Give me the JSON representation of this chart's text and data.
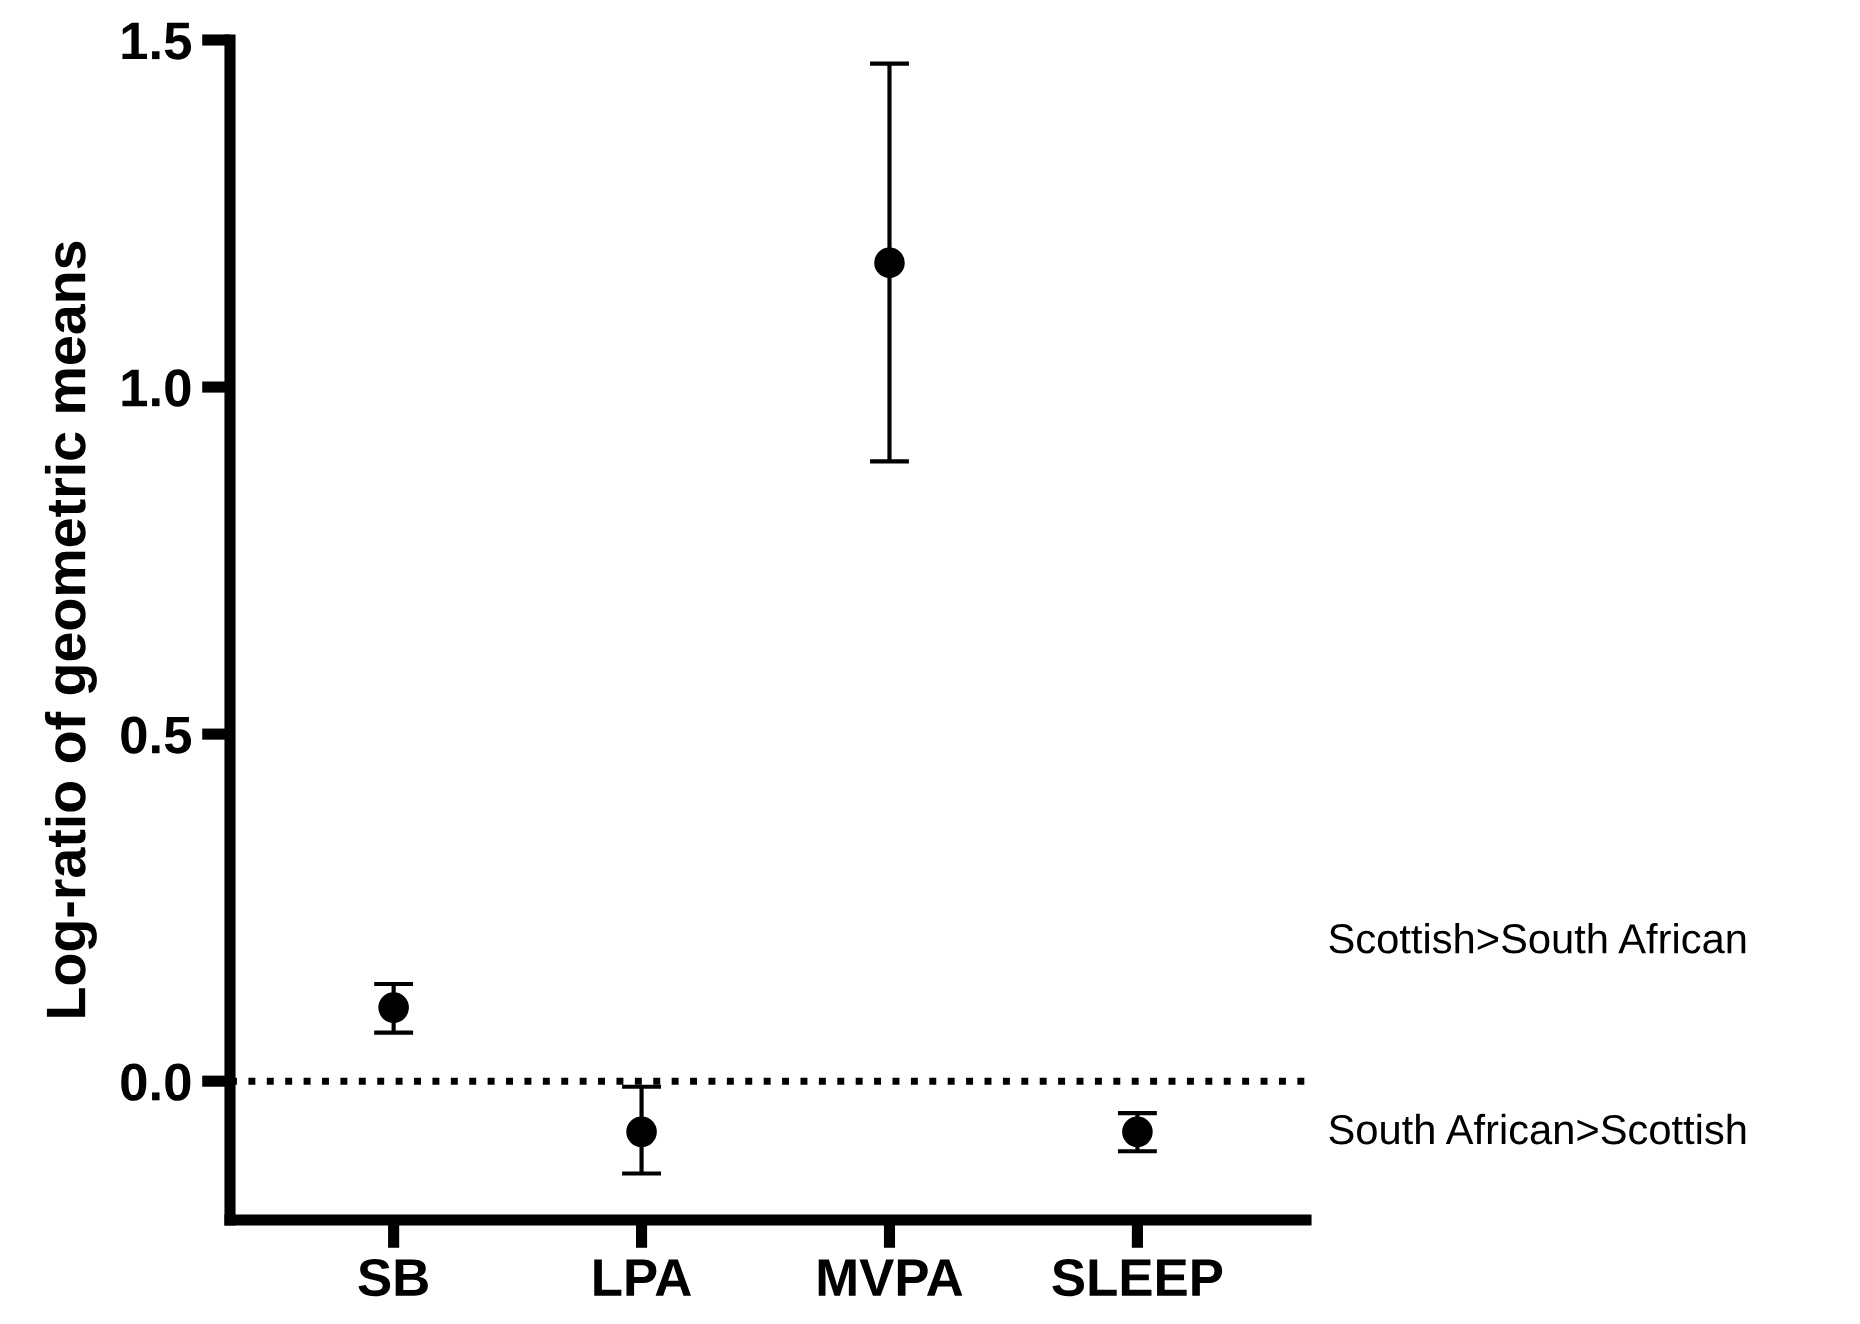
{
  "chart_data": {
    "type": "scatter",
    "ylabel": "Log-ratio of geometric means",
    "categories": [
      "SB",
      "LPA",
      "MVPA",
      "SLEEP"
    ],
    "values": [
      0.106,
      -0.073,
      1.179,
      -0.073
    ],
    "errors": [
      [
        0.07,
        0.14
      ],
      [
        -0.133,
        -0.008
      ],
      [
        0.893,
        1.466
      ],
      [
        -0.101,
        -0.046
      ]
    ],
    "color": "#000000",
    "marker": "circle",
    "ylim": [
      -0.2,
      1.5
    ],
    "yticks": [
      {
        "value": 0.0,
        "label": "0.0"
      },
      0.5,
      {
        "value": 1.0,
        "label": "1.0"
      },
      1.5
    ],
    "ref_lines": [
      {
        "axis": "y",
        "value": 0,
        "line_style": "dotted",
        "color": "#000000"
      }
    ],
    "annotations": [
      "Scottish>South African",
      "South African>Scottish"
    ],
    "grid": false,
    "legend": false
  }
}
